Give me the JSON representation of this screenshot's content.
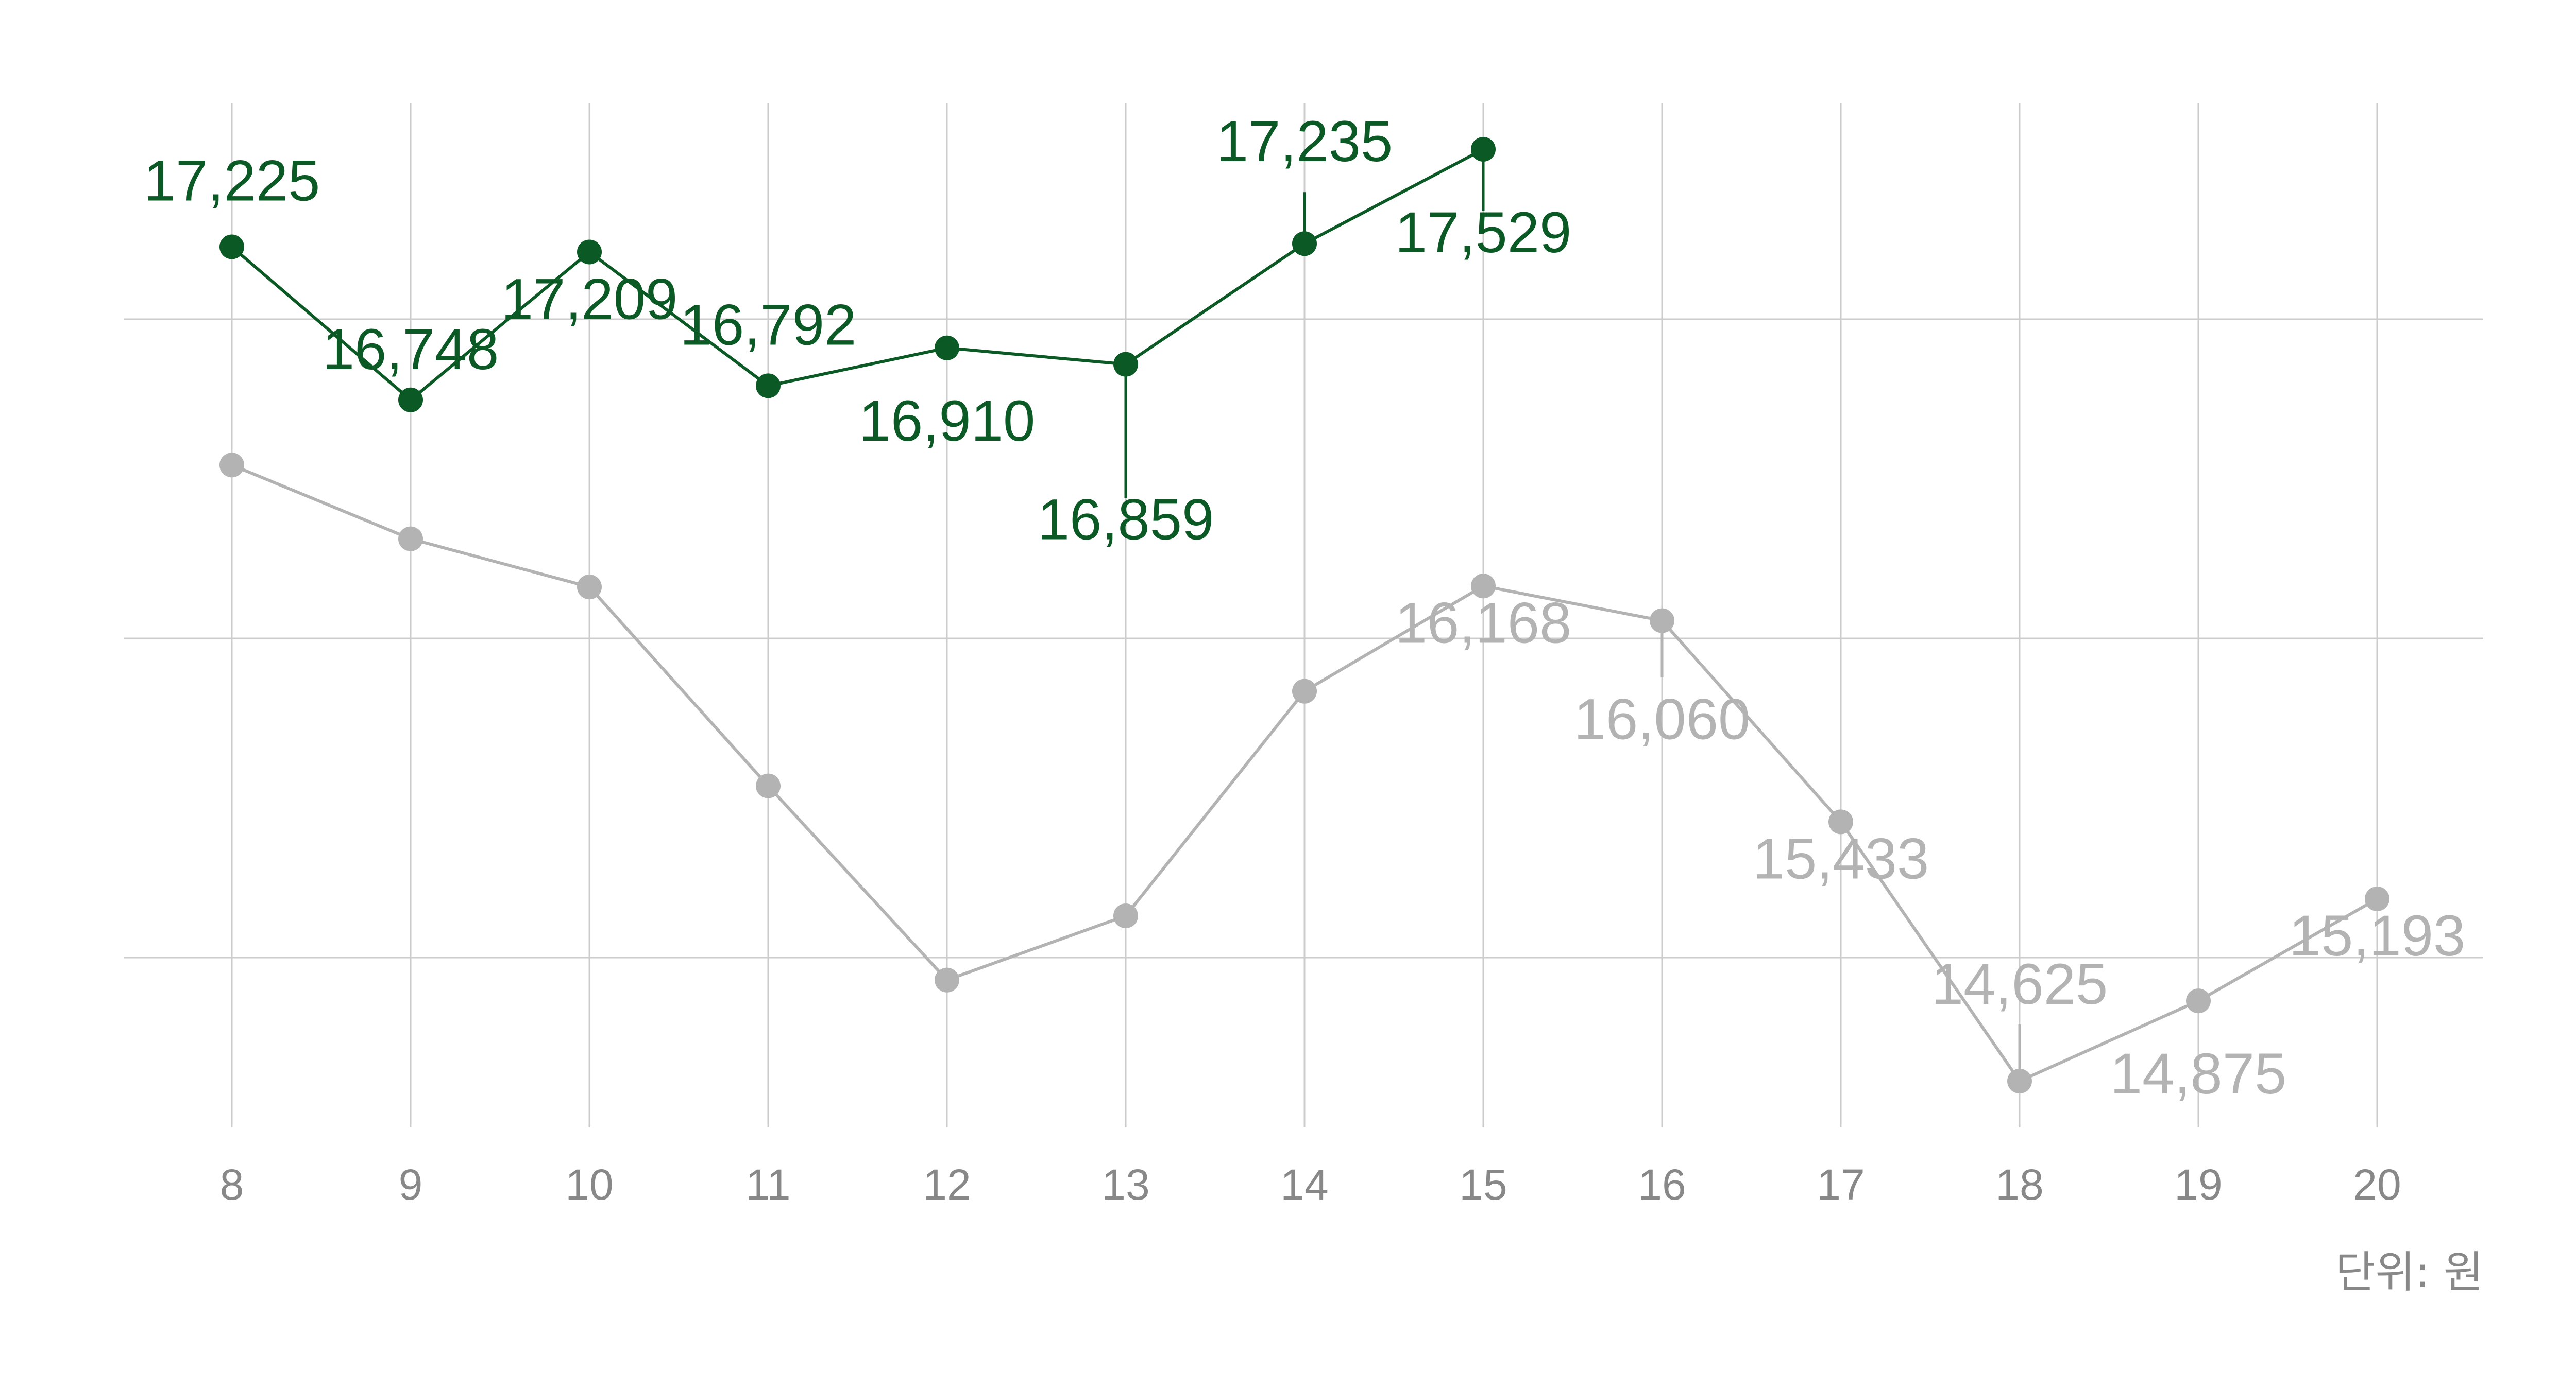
{
  "chart_data": {
    "type": "line",
    "x": [
      8,
      9,
      10,
      11,
      12,
      13,
      14,
      15,
      16,
      17,
      18,
      19,
      20
    ],
    "series": [
      {
        "color": "#0b5a25",
        "values": [
          17225,
          16748,
          17209,
          16792,
          16910,
          16859,
          17235,
          17529,
          null,
          null,
          null,
          null,
          null
        ],
        "labels": [
          "17,225",
          "16,748",
          "17,209",
          "16,792",
          "16,910",
          "16,859",
          "17,235",
          "17,529",
          "",
          "",
          "",
          "",
          ""
        ]
      },
      {
        "color": "#b3b3b3",
        "values": [
          16545,
          16315,
          16165,
          15545,
          14940,
          15140,
          15840,
          16168,
          16060,
          15433,
          14625,
          14875,
          15193
        ],
        "labels": [
          "",
          "",
          "",
          "",
          "",
          "",
          "",
          "16,168",
          "16,060",
          "15,433",
          "14,625",
          "14,875",
          "15,193"
        ]
      }
    ],
    "ylim": [
      14450,
      17700
    ],
    "grid": true,
    "unit_note": "단위: 원"
  }
}
